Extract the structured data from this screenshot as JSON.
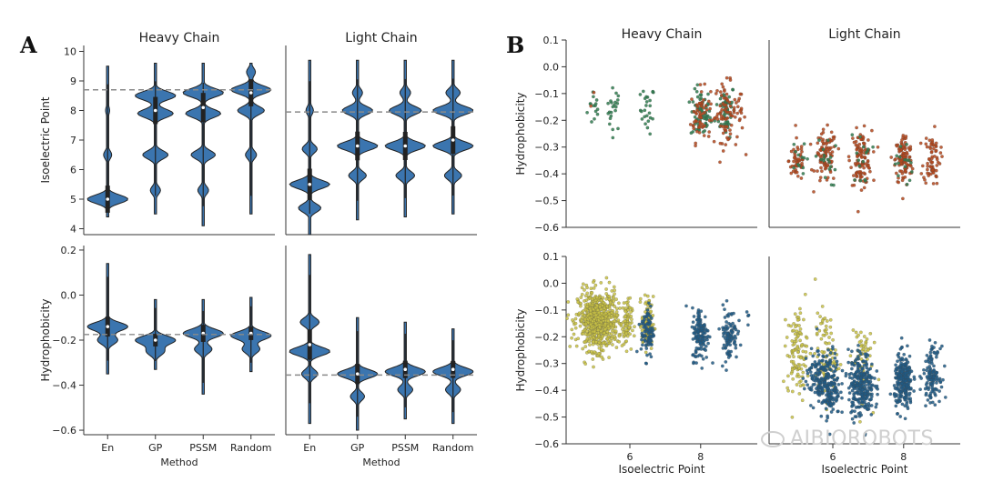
{
  "panel_labels": [
    "A",
    "B"
  ],
  "watermark": "AIBIOROBOTS",
  "chart_data": [
    {
      "panel": "A",
      "type": "violin",
      "columns": [
        "Heavy Chain",
        "Light Chain"
      ],
      "categories": [
        "En",
        "GP",
        "PSSM",
        "Random"
      ],
      "xlabel": "Method",
      "rows": [
        {
          "ylabel": "Isoelectric Point",
          "ylim": [
            3.8,
            10.2
          ],
          "yticks": [
            "4",
            "5",
            "6",
            "7",
            "8",
            "9",
            "10"
          ],
          "reference_line": {
            "Heavy Chain": 8.7,
            "Light Chain": 7.95
          },
          "violins": {
            "Heavy Chain": [
              {
                "min": 4.4,
                "max": 9.5,
                "median": 5.0,
                "modes": [
                  [
                    5.0,
                    1.0
                  ],
                  [
                    6.5,
                    0.2
                  ],
                  [
                    8.0,
                    0.1
                  ]
                ]
              },
              {
                "min": 4.5,
                "max": 9.6,
                "median": 8.0,
                "modes": [
                  [
                    8.5,
                    0.8
                  ],
                  [
                    7.9,
                    0.7
                  ],
                  [
                    6.5,
                    0.5
                  ],
                  [
                    5.3,
                    0.2
                  ]
                ]
              },
              {
                "min": 4.1,
                "max": 9.6,
                "median": 8.1,
                "modes": [
                  [
                    8.6,
                    0.75
                  ],
                  [
                    7.9,
                    0.65
                  ],
                  [
                    6.5,
                    0.45
                  ],
                  [
                    5.3,
                    0.2
                  ]
                ]
              },
              {
                "min": 4.5,
                "max": 9.6,
                "median": 8.6,
                "modes": [
                  [
                    8.7,
                    0.9
                  ],
                  [
                    8.0,
                    0.6
                  ],
                  [
                    6.5,
                    0.25
                  ],
                  [
                    9.3,
                    0.2
                  ]
                ]
              }
            ],
            "Light Chain": [
              {
                "min": 3.8,
                "max": 9.7,
                "median": 5.5,
                "modes": [
                  [
                    5.5,
                    0.8
                  ],
                  [
                    4.7,
                    0.45
                  ],
                  [
                    6.7,
                    0.3
                  ],
                  [
                    8.0,
                    0.15
                  ]
                ]
              },
              {
                "min": 4.3,
                "max": 9.7,
                "median": 6.8,
                "modes": [
                  [
                    6.8,
                    0.8
                  ],
                  [
                    8.0,
                    0.6
                  ],
                  [
                    5.8,
                    0.35
                  ],
                  [
                    8.6,
                    0.2
                  ]
                ]
              },
              {
                "min": 4.4,
                "max": 9.7,
                "median": 6.8,
                "modes": [
                  [
                    6.8,
                    0.75
                  ],
                  [
                    8.0,
                    0.6
                  ],
                  [
                    5.8,
                    0.35
                  ],
                  [
                    8.6,
                    0.2
                  ]
                ]
              },
              {
                "min": 4.5,
                "max": 9.7,
                "median": 7.0,
                "modes": [
                  [
                    6.8,
                    0.7
                  ],
                  [
                    8.0,
                    0.7
                  ],
                  [
                    5.8,
                    0.3
                  ],
                  [
                    8.6,
                    0.25
                  ]
                ]
              }
            ]
          }
        },
        {
          "ylabel": "Hydrophobicity",
          "ylim": [
            -0.62,
            0.22
          ],
          "yticks": [
            "0.2",
            "0.0",
            "−0.2",
            "−0.4",
            "−0.6"
          ],
          "reference_line": {
            "Heavy Chain": -0.175,
            "Light Chain": -0.355
          },
          "violins": {
            "Heavy Chain": [
              {
                "min": -0.35,
                "max": 0.14,
                "median": -0.14,
                "modes": [
                  [
                    -0.14,
                    0.8
                  ],
                  [
                    -0.2,
                    0.4
                  ]
                ]
              },
              {
                "min": -0.33,
                "max": -0.02,
                "median": -0.2,
                "modes": [
                  [
                    -0.2,
                    0.9
                  ],
                  [
                    -0.25,
                    0.4
                  ]
                ]
              },
              {
                "min": -0.44,
                "max": -0.02,
                "median": -0.17,
                "modes": [
                  [
                    -0.17,
                    0.8
                  ],
                  [
                    -0.24,
                    0.35
                  ]
                ]
              },
              {
                "min": -0.34,
                "max": -0.01,
                "median": -0.17,
                "modes": [
                  [
                    -0.18,
                    0.8
                  ],
                  [
                    -0.24,
                    0.35
                  ]
                ]
              }
            ],
            "Light Chain": [
              {
                "min": -0.57,
                "max": 0.18,
                "median": -0.22,
                "modes": [
                  [
                    -0.25,
                    0.75
                  ],
                  [
                    -0.12,
                    0.35
                  ],
                  [
                    -0.35,
                    0.3
                  ]
                ]
              },
              {
                "min": -0.6,
                "max": -0.1,
                "median": -0.35,
                "modes": [
                  [
                    -0.35,
                    0.85
                  ],
                  [
                    -0.45,
                    0.3
                  ]
                ]
              },
              {
                "min": -0.55,
                "max": -0.12,
                "median": -0.33,
                "modes": [
                  [
                    -0.34,
                    0.8
                  ],
                  [
                    -0.42,
                    0.3
                  ]
                ]
              },
              {
                "min": -0.57,
                "max": -0.15,
                "median": -0.33,
                "modes": [
                  [
                    -0.34,
                    0.8
                  ],
                  [
                    -0.42,
                    0.3
                  ]
                ]
              }
            ]
          }
        }
      ]
    },
    {
      "panel": "B",
      "type": "scatter",
      "columns": [
        "Heavy Chain",
        "Light Chain"
      ],
      "xlabel": "Isoelectric Point",
      "xlim": [
        4.2,
        9.6
      ],
      "xticks": [
        "6",
        "8"
      ],
      "ylabel": "Hydrophobicity",
      "ylim": [
        -0.6,
        0.1
      ],
      "yticks": [
        "0.1",
        "0.0",
        "−0.1",
        "−0.2",
        "−0.3",
        "−0.4",
        "−0.5",
        "−0.6"
      ],
      "rows": [
        {
          "colors": [
            "#2e7d4f",
            "#b5471b"
          ],
          "clusters": {
            "Heavy Chain": [
              {
                "x": 5.0,
                "y": -0.15,
                "sx": 0.1,
                "sy": 0.04,
                "n": 14,
                "c": 0
              },
              {
                "x": 5.55,
                "y": -0.16,
                "sx": 0.1,
                "sy": 0.04,
                "n": 22,
                "c": 0
              },
              {
                "x": 6.5,
                "y": -0.16,
                "sx": 0.1,
                "sy": 0.045,
                "n": 25,
                "c": 0
              },
              {
                "x": 8.0,
                "y": -0.18,
                "sx": 0.14,
                "sy": 0.045,
                "n": 65,
                "c": 0
              },
              {
                "x": 8.7,
                "y": -0.16,
                "sx": 0.14,
                "sy": 0.05,
                "n": 55,
                "c": 0
              },
              {
                "x": 8.0,
                "y": -0.18,
                "sx": 0.14,
                "sy": 0.05,
                "n": 60,
                "c": 1
              },
              {
                "x": 8.7,
                "y": -0.17,
                "sx": 0.15,
                "sy": 0.055,
                "n": 70,
                "c": 1
              },
              {
                "x": 9.1,
                "y": -0.2,
                "sx": 0.08,
                "sy": 0.05,
                "n": 18,
                "c": 1
              },
              {
                "x": 5.0,
                "y": -0.11,
                "sx": 0.05,
                "sy": 0.02,
                "n": 2,
                "c": 1
              }
            ],
            "Light Chain": [
              {
                "x": 5.0,
                "y": -0.35,
                "sx": 0.12,
                "sy": 0.04,
                "n": 50,
                "c": 1
              },
              {
                "x": 5.8,
                "y": -0.34,
                "sx": 0.15,
                "sy": 0.05,
                "n": 90,
                "c": 1
              },
              {
                "x": 6.8,
                "y": -0.34,
                "sx": 0.15,
                "sy": 0.05,
                "n": 110,
                "c": 1
              },
              {
                "x": 8.0,
                "y": -0.35,
                "sx": 0.12,
                "sy": 0.05,
                "n": 110,
                "c": 1
              },
              {
                "x": 8.8,
                "y": -0.34,
                "sx": 0.12,
                "sy": 0.05,
                "n": 70,
                "c": 1
              },
              {
                "x": 5.0,
                "y": -0.36,
                "sx": 0.12,
                "sy": 0.04,
                "n": 12,
                "c": 0
              },
              {
                "x": 5.8,
                "y": -0.35,
                "sx": 0.15,
                "sy": 0.05,
                "n": 18,
                "c": 0
              },
              {
                "x": 6.8,
                "y": -0.35,
                "sx": 0.15,
                "sy": 0.05,
                "n": 15,
                "c": 0
              },
              {
                "x": 8.0,
                "y": -0.36,
                "sx": 0.12,
                "sy": 0.05,
                "n": 15,
                "c": 0
              }
            ]
          }
        },
        {
          "colors": [
            "#c9c244",
            "#1f5a86"
          ],
          "clusters": {
            "Heavy Chain": [
              {
                "x": 5.1,
                "y": -0.14,
                "sx": 0.28,
                "sy": 0.055,
                "n": 650,
                "c": 0
              },
              {
                "x": 5.9,
                "y": -0.15,
                "sx": 0.08,
                "sy": 0.045,
                "n": 70,
                "c": 0
              },
              {
                "x": 6.5,
                "y": -0.15,
                "sx": 0.08,
                "sy": 0.05,
                "n": 90,
                "c": 0
              },
              {
                "x": 6.5,
                "y": -0.18,
                "sx": 0.09,
                "sy": 0.05,
                "n": 90,
                "c": 1
              },
              {
                "x": 8.0,
                "y": -0.19,
                "sx": 0.12,
                "sy": 0.05,
                "n": 130,
                "c": 1
              },
              {
                "x": 8.8,
                "y": -0.19,
                "sx": 0.12,
                "sy": 0.05,
                "n": 95,
                "c": 1
              },
              {
                "x": 9.3,
                "y": -0.13,
                "sx": 0.05,
                "sy": 0.02,
                "n": 4,
                "c": 1
              }
            ],
            "Light Chain": [
              {
                "x": 5.0,
                "y": -0.26,
                "sx": 0.14,
                "sy": 0.08,
                "n": 110,
                "c": 0
              },
              {
                "x": 5.8,
                "y": -0.27,
                "sx": 0.15,
                "sy": 0.08,
                "n": 90,
                "c": 0
              },
              {
                "x": 6.8,
                "y": -0.28,
                "sx": 0.15,
                "sy": 0.08,
                "n": 60,
                "c": 0
              },
              {
                "x": 5.5,
                "y": -0.35,
                "sx": 0.15,
                "sy": 0.05,
                "n": 80,
                "c": 1
              },
              {
                "x": 5.9,
                "y": -0.38,
                "sx": 0.15,
                "sy": 0.06,
                "n": 180,
                "c": 1
              },
              {
                "x": 6.8,
                "y": -0.38,
                "sx": 0.18,
                "sy": 0.06,
                "n": 260,
                "c": 1
              },
              {
                "x": 8.0,
                "y": -0.37,
                "sx": 0.13,
                "sy": 0.05,
                "n": 240,
                "c": 1
              },
              {
                "x": 8.8,
                "y": -0.34,
                "sx": 0.12,
                "sy": 0.05,
                "n": 120,
                "c": 1
              }
            ]
          }
        }
      ]
    }
  ]
}
